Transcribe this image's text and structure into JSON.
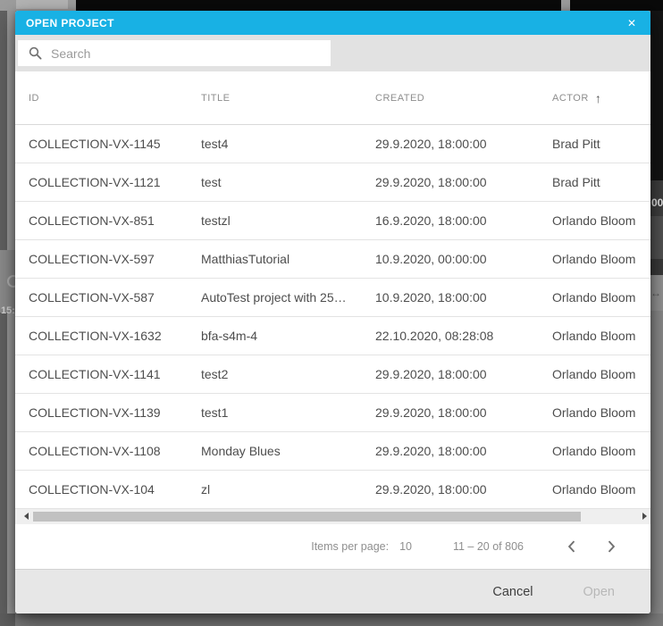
{
  "background": {
    "left_timecode": "15:",
    "right_timecode": "00",
    "resize_handle_icon": "↔"
  },
  "dialog": {
    "title": "OPEN PROJECT",
    "close_icon": "✕",
    "search": {
      "placeholder": "Search",
      "value": ""
    },
    "table": {
      "headers": {
        "id": "ID",
        "title": "TITLE",
        "created": "CREATED",
        "actor": "ACTOR"
      },
      "sort": {
        "column": "actor",
        "direction": "asc",
        "icon": "↑"
      },
      "rows": [
        {
          "id": "COLLECTION-VX-1145",
          "title": "test4",
          "created": "29.9.2020, 18:00:00",
          "actor": "Brad Pitt"
        },
        {
          "id": "COLLECTION-VX-1121",
          "title": "test",
          "created": "29.9.2020, 18:00:00",
          "actor": "Brad Pitt"
        },
        {
          "id": "COLLECTION-VX-851",
          "title": "testzl",
          "created": "16.9.2020, 18:00:00",
          "actor": "Orlando Bloom"
        },
        {
          "id": "COLLECTION-VX-597",
          "title": "MatthiasTutorial",
          "created": "10.9.2020, 00:00:00",
          "actor": "Orlando Bloom"
        },
        {
          "id": "COLLECTION-VX-587",
          "title": "AutoTest project with 25…",
          "created": "10.9.2020, 18:00:00",
          "actor": "Orlando Bloom"
        },
        {
          "id": "COLLECTION-VX-1632",
          "title": "bfa-s4m-4",
          "created": "22.10.2020, 08:28:08",
          "actor": "Orlando Bloom"
        },
        {
          "id": "COLLECTION-VX-1141",
          "title": "test2",
          "created": "29.9.2020, 18:00:00",
          "actor": "Orlando Bloom"
        },
        {
          "id": "COLLECTION-VX-1139",
          "title": "test1",
          "created": "29.9.2020, 18:00:00",
          "actor": "Orlando Bloom"
        },
        {
          "id": "COLLECTION-VX-1108",
          "title": "Monday Blues",
          "created": "29.9.2020, 18:00:00",
          "actor": "Orlando Bloom"
        },
        {
          "id": "COLLECTION-VX-104",
          "title": "zl",
          "created": "29.9.2020, 18:00:00",
          "actor": "Orlando Bloom"
        }
      ]
    },
    "paginator": {
      "items_per_page_label": "Items per page:",
      "items_per_page_value": "10",
      "range_label": "11 – 20 of 806"
    },
    "footer": {
      "cancel_label": "Cancel",
      "open_label": "Open"
    }
  },
  "colors": {
    "accent": "#18b1e4",
    "toolbar_bg": "#e2e2e2",
    "footer_bg": "#e7e7e7"
  }
}
